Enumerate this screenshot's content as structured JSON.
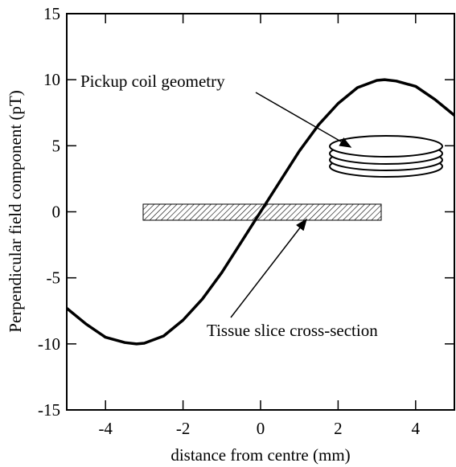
{
  "chart_data": {
    "type": "line",
    "xlabel": "distance from centre (mm)",
    "ylabel": "Perpendicular field component (pT)",
    "annotations": [
      "Pickup coil geometry",
      "Tissue slice cross-section"
    ],
    "x": [
      -5,
      -4.5,
      -4,
      -3.5,
      -3.2,
      -3,
      -2.5,
      -2,
      -1.5,
      -1,
      -0.5,
      0,
      0.5,
      1,
      1.5,
      2,
      2.5,
      3,
      3.2,
      3.5,
      4,
      4.5,
      5
    ],
    "series": [
      {
        "color": "#000000",
        "values": [
          -7.3,
          -8.5,
          -9.5,
          -9.9,
          -10,
          -9.95,
          -9.4,
          -8.2,
          -6.6,
          -4.6,
          -2.3,
          0,
          2.3,
          4.6,
          6.6,
          8.2,
          9.4,
          9.95,
          10,
          9.9,
          9.5,
          8.5,
          7.3
        ]
      }
    ],
    "xlim": [
      -5,
      5
    ],
    "xticks": [
      -4,
      -2,
      0,
      2,
      4
    ],
    "ylim": [
      -15,
      15
    ],
    "yticks": [
      -15,
      -10,
      -5,
      0,
      5,
      10,
      15
    ],
    "grid": false
  }
}
